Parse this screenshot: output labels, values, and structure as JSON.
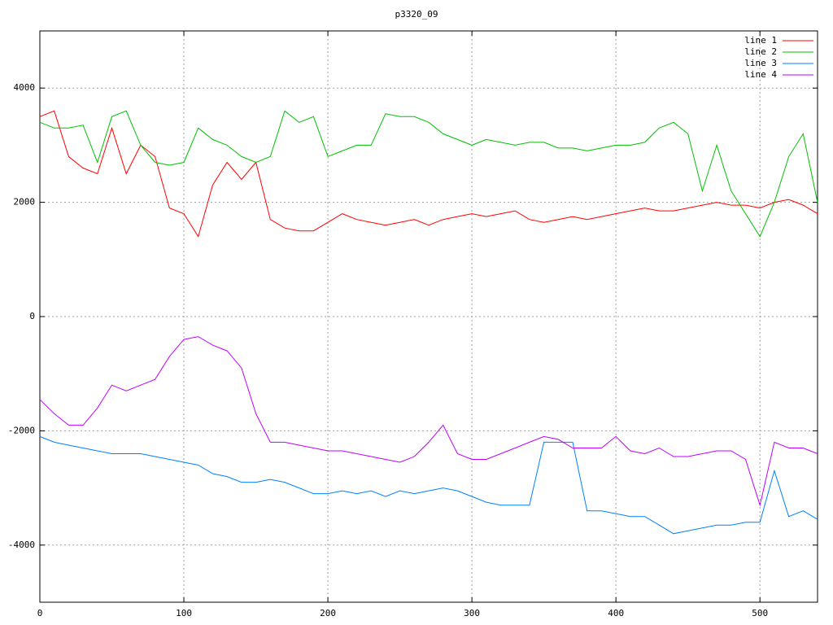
{
  "chart_data": {
    "type": "line",
    "title": "p3320_09",
    "x": [
      0,
      10,
      20,
      30,
      40,
      50,
      60,
      70,
      80,
      90,
      100,
      110,
      120,
      130,
      140,
      150,
      160,
      170,
      180,
      190,
      200,
      210,
      220,
      230,
      240,
      250,
      260,
      270,
      280,
      290,
      300,
      310,
      320,
      330,
      340,
      350,
      360,
      370,
      380,
      390,
      400,
      410,
      420,
      430,
      440,
      450,
      460,
      470,
      480,
      490,
      500,
      510,
      520,
      530,
      540
    ],
    "series": [
      {
        "name": "line 1",
        "color": "#ff0000",
        "values": [
          3500,
          3600,
          2800,
          2600,
          2500,
          3300,
          2500,
          3000,
          2800,
          1900,
          1800,
          1400,
          2300,
          2700,
          2400,
          2700,
          1700,
          1550,
          1500,
          1500,
          1650,
          1800,
          1700,
          1650,
          1600,
          1650,
          1700,
          1600,
          1700,
          1750,
          1800,
          1750,
          1800,
          1850,
          1700,
          1650,
          1700,
          1750,
          1700,
          1750,
          1800,
          1850,
          1900,
          1850,
          1850,
          1900,
          1950,
          2000,
          1950,
          1950,
          1900,
          2000,
          2050,
          1950,
          1800
        ]
      },
      {
        "name": "line 2",
        "color": "#00c000",
        "values": [
          3400,
          3300,
          3300,
          3350,
          2700,
          3500,
          3600,
          3000,
          2700,
          2650,
          2700,
          3300,
          3100,
          3000,
          2800,
          2700,
          2800,
          3600,
          3400,
          3500,
          2800,
          2900,
          3000,
          3000,
          3550,
          3500,
          3500,
          3400,
          3200,
          3100,
          3000,
          3100,
          3050,
          3000,
          3050,
          3050,
          2950,
          2950,
          2900,
          2950,
          3000,
          3000,
          3050,
          3300,
          3400,
          3200,
          2200,
          3000,
          2200,
          1800,
          1400,
          2000,
          2800,
          3200,
          2000
        ]
      },
      {
        "name": "line 3",
        "color": "#0080ff",
        "values": [
          -2100,
          -2200,
          -2250,
          -2300,
          -2350,
          -2400,
          -2400,
          -2400,
          -2450,
          -2500,
          -2550,
          -2600,
          -2750,
          -2800,
          -2900,
          -2900,
          -2850,
          -2900,
          -3000,
          -3100,
          -3100,
          -3050,
          -3100,
          -3050,
          -3150,
          -3050,
          -3100,
          -3050,
          -3000,
          -3050,
          -3150,
          -3250,
          -3300,
          -3300,
          -3300,
          -2200,
          -2200,
          -2200,
          -3400,
          -3400,
          -3450,
          -3500,
          -3500,
          -3650,
          -3800,
          -3750,
          -3700,
          -3650,
          -3650,
          -3600,
          -3600,
          -2700,
          -3500,
          -3400,
          -3550
        ]
      },
      {
        "name": "line 4",
        "color": "#c000ff",
        "values": [
          -1450,
          -1700,
          -1900,
          -1900,
          -1600,
          -1200,
          -1300,
          -1200,
          -1100,
          -700,
          -400,
          -350,
          -500,
          -600,
          -900,
          -1700,
          -2200,
          -2200,
          -2250,
          -2300,
          -2350,
          -2350,
          -2400,
          -2450,
          -2500,
          -2550,
          -2450,
          -2200,
          -1900,
          -2400,
          -2500,
          -2500,
          -2400,
          -2300,
          -2200,
          -2100,
          -2150,
          -2300,
          -2300,
          -2300,
          -2100,
          -2350,
          -2400,
          -2300,
          -2450,
          -2450,
          -2400,
          -2350,
          -2350,
          -2500,
          -3300,
          -2200,
          -2300,
          -2300,
          -2400
        ]
      }
    ],
    "xlim": [
      0,
      540
    ],
    "ylim": [
      -5000,
      5000
    ],
    "xticks": [
      0,
      100,
      200,
      300,
      400,
      500
    ],
    "yticks": [
      -4000,
      -2000,
      0,
      2000,
      4000
    ],
    "grid": true,
    "legend": "top-right"
  }
}
